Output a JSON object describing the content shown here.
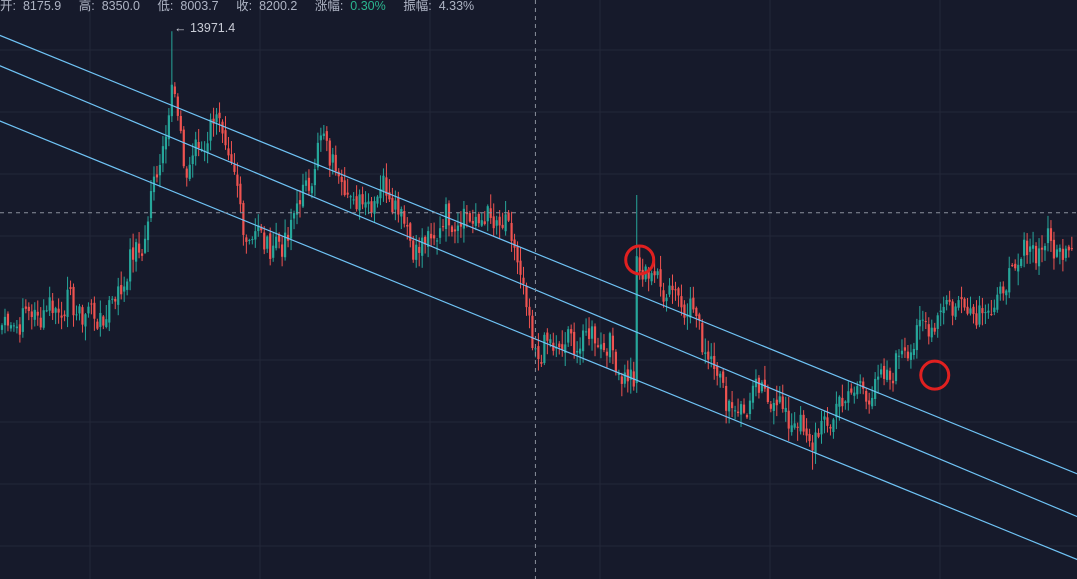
{
  "info_bar": {
    "open_label": "开:",
    "open_value": "8175.9",
    "high_label": "高:",
    "high_value": "8350.0",
    "low_label": "低:",
    "low_value": "8003.7",
    "close_label": "收:",
    "close_value": "8200.2",
    "change_label": "涨幅:",
    "change_value": "0.30%",
    "amplitude_label": "振幅:",
    "amplitude_value": "4.33%"
  },
  "colors": {
    "background": "#161a2b",
    "grid": "#232838",
    "up": "#26a69a",
    "down": "#ef5350",
    "channel": "#6fc3f5",
    "crosshair": "#8a8f9c",
    "marker": "#e02020"
  },
  "chart_data": {
    "type": "candlestick",
    "max_label": "← 13971.4",
    "y_axis": {
      "min": 4700,
      "max": 14500,
      "ticks_shown": false
    },
    "candles_count": 360,
    "key_points": [
      {
        "index": 0,
        "close": 9000
      },
      {
        "index": 20,
        "close": 9350
      },
      {
        "index": 34,
        "close": 9100
      },
      {
        "index": 48,
        "close": 10500
      },
      {
        "index": 57,
        "close": 13000
      },
      {
        "index": 62,
        "close": 11600
      },
      {
        "index": 72,
        "close": 12550
      },
      {
        "index": 82,
        "close": 10600
      },
      {
        "index": 94,
        "close": 10300
      },
      {
        "index": 108,
        "close": 12150
      },
      {
        "index": 118,
        "close": 11050
      },
      {
        "index": 130,
        "close": 11350
      },
      {
        "index": 140,
        "close": 10200
      },
      {
        "index": 150,
        "close": 10850
      },
      {
        "index": 166,
        "close": 10720
      },
      {
        "index": 172,
        "close": 10400
      },
      {
        "index": 178,
        "close": 8550
      },
      {
        "index": 190,
        "close": 8650
      },
      {
        "index": 200,
        "close": 8850
      },
      {
        "index": 212,
        "close": 7950
      },
      {
        "index": 213,
        "close": 10000
      },
      {
        "index": 230,
        "close": 9400
      },
      {
        "index": 246,
        "close": 7500
      },
      {
        "index": 256,
        "close": 7900
      },
      {
        "index": 272,
        "close": 7000
      },
      {
        "index": 284,
        "close": 7850
      },
      {
        "index": 295,
        "close": 7950
      },
      {
        "index": 302,
        "close": 8550
      },
      {
        "index": 318,
        "close": 9400
      },
      {
        "index": 332,
        "close": 9250
      },
      {
        "index": 345,
        "close": 10350
      },
      {
        "index": 359,
        "close": 10300
      }
    ],
    "channel_lines": [
      {
        "name": "upper",
        "start": {
          "index": -25,
          "price": 14400
        },
        "end": {
          "index": 372,
          "price": 6250
        }
      },
      {
        "name": "middle",
        "start": {
          "index": -25,
          "price": 13900
        },
        "end": {
          "index": 372,
          "price": 5520
        }
      },
      {
        "name": "lower",
        "start": {
          "index": -25,
          "price": 12950
        },
        "end": {
          "index": 372,
          "price": 4800
        }
      }
    ],
    "markers": [
      {
        "index": 214,
        "price": 10100
      },
      {
        "index": 313,
        "price": 8150
      }
    ],
    "crosshair": {
      "index": 179,
      "price": 10900
    }
  }
}
